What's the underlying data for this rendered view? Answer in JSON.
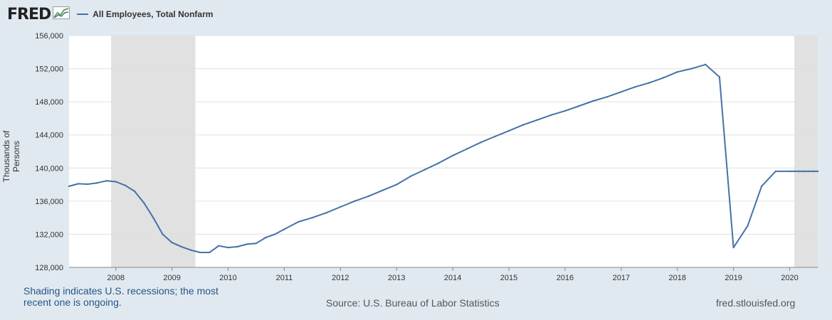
{
  "header": {
    "logo_text": "FRED",
    "legend_label": "All Employees, Total Nonfarm",
    "series_color": "#4572a7"
  },
  "footer": {
    "note": "Shading indicates U.S. recessions; the most recent one is ongoing.",
    "source": "Source: U.S. Bureau of Labor Statistics",
    "url": "fred.stlouisfed.org"
  },
  "chart_data": {
    "type": "line",
    "title": "",
    "xlabel": "",
    "ylabel": "Thousands of Persons",
    "ylim": [
      128000,
      156000
    ],
    "xlim": [
      2007.167,
      2020.5
    ],
    "grid": true,
    "y_ticks": [
      {
        "value": 128000,
        "label": "128,000"
      },
      {
        "value": 132000,
        "label": "132,000"
      },
      {
        "value": 136000,
        "label": "136,000"
      },
      {
        "value": 140000,
        "label": "140,000"
      },
      {
        "value": 144000,
        "label": "144,000"
      },
      {
        "value": 148000,
        "label": "148,000"
      },
      {
        "value": 152000,
        "label": "152,000"
      },
      {
        "value": 156000,
        "label": "156,000"
      }
    ],
    "x_ticks": [
      {
        "value": 2008,
        "label": "2008"
      },
      {
        "value": 2009,
        "label": "2009"
      },
      {
        "value": 2010,
        "label": "2010"
      },
      {
        "value": 2011,
        "label": "2011"
      },
      {
        "value": 2012,
        "label": "2012"
      },
      {
        "value": 2013,
        "label": "2013"
      },
      {
        "value": 2014,
        "label": "2014"
      },
      {
        "value": 2015,
        "label": "2015"
      },
      {
        "value": 2016,
        "label": "2016"
      },
      {
        "value": 2017,
        "label": "2017"
      },
      {
        "value": 2018,
        "label": "2018"
      },
      {
        "value": 2019,
        "label": "2019"
      },
      {
        "value": 2020,
        "label": "2020"
      }
    ],
    "recessions": [
      {
        "start": 2007.917,
        "end": 2009.417
      },
      {
        "start": 2020.083,
        "end": 2020.5
      }
    ],
    "series": [
      {
        "name": "All Employees, Total Nonfarm",
        "color": "#4572a7",
        "x": [
          2007.167,
          2007.333,
          2007.5,
          2007.667,
          2007.833,
          2008.0,
          2008.167,
          2008.333,
          2008.5,
          2008.667,
          2008.833,
          2009.0,
          2009.167,
          2009.333,
          2009.5,
          2009.667,
          2009.833,
          2010.0,
          2010.167,
          2010.333,
          2010.5,
          2010.667,
          2010.833,
          2011.0,
          2011.25,
          2011.5,
          2011.75,
          2012.0,
          2012.25,
          2012.5,
          2012.75,
          2013.0,
          2013.25,
          2013.5,
          2013.75,
          2014.0,
          2014.25,
          2014.5,
          2014.75,
          2015.0,
          2015.25,
          2015.5,
          2015.75,
          2016.0,
          2016.25,
          2016.5,
          2016.75,
          2017.0,
          2017.25,
          2017.5,
          2017.75,
          2018.0,
          2018.25,
          2018.5,
          2018.75,
          2019.0,
          2019.25,
          2019.5,
          2019.75,
          2020.0,
          2020.083,
          2020.167,
          2020.25,
          2020.333,
          2020.417,
          2020.5
        ],
        "values": [
          137800,
          138100,
          138050,
          138200,
          138450,
          138350,
          137900,
          137200,
          135800,
          134000,
          132000,
          131000,
          130500,
          130100,
          129800,
          129800,
          130600,
          130400,
          130500,
          130800,
          130900,
          131600,
          132000,
          132600,
          133500,
          134000,
          134600,
          135300,
          136000,
          136600,
          137300,
          138000,
          139000,
          139800,
          140600,
          141500,
          142300,
          143100,
          143800,
          144500,
          145200,
          145800,
          146400,
          146900,
          147500,
          148100,
          148600,
          149200,
          149800,
          150300,
          150900,
          151600,
          152000,
          152500,
          151000,
          130400,
          133000,
          137800,
          139600,
          139600,
          139600,
          139600,
          139600,
          139600,
          139600,
          139600
        ]
      }
    ]
  }
}
